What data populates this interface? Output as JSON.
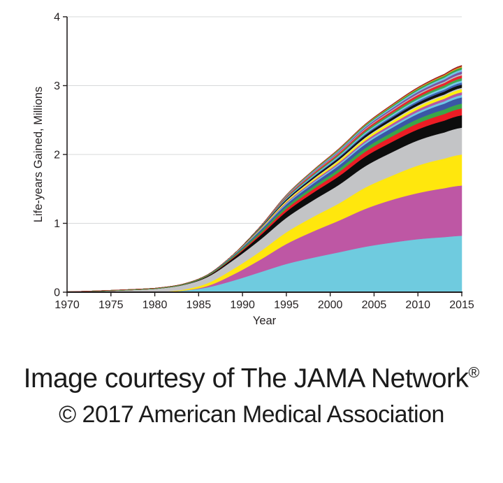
{
  "page": {
    "background": "#FFFFFF"
  },
  "chart_data": {
    "type": "area",
    "stacked": true,
    "title": "",
    "xlabel": "Year",
    "ylabel": "Life-years Gained, Millions",
    "xlim": [
      1970,
      2015
    ],
    "ylim": [
      0,
      4
    ],
    "x_ticks": [
      "1970",
      "1975",
      "1980",
      "1985",
      "1990",
      "1995",
      "2000",
      "2005",
      "2010",
      "2015"
    ],
    "y_ticks": [
      "0",
      "1",
      "2",
      "3",
      "4"
    ],
    "grid": {
      "horizontal": true,
      "values": [
        1,
        2,
        3,
        4
      ],
      "color": "#D7D8DA"
    },
    "axis_color": "#231F20",
    "tick_label_color": "#231F20",
    "years": [
      1970,
      1975,
      1980,
      1983,
      1986,
      1989,
      1992,
      1995,
      1998,
      2001,
      2004,
      2007,
      2010,
      2013,
      2015
    ],
    "series": [
      {
        "name": "band-01-cyan",
        "color": "#6FCBDF",
        "values": [
          0,
          0,
          0.002,
          0.02,
          0.07,
          0.17,
          0.29,
          0.41,
          0.5,
          0.58,
          0.66,
          0.72,
          0.77,
          0.8,
          0.82
        ]
      },
      {
        "name": "band-02-magenta",
        "color": "#BE57A4",
        "values": [
          0,
          0,
          0,
          0,
          0.02,
          0.09,
          0.18,
          0.29,
          0.38,
          0.46,
          0.55,
          0.62,
          0.67,
          0.71,
          0.73
        ]
      },
      {
        "name": "band-03-yellow",
        "color": "#FFE70D",
        "values": [
          0,
          0,
          0.001,
          0.012,
          0.04,
          0.08,
          0.12,
          0.17,
          0.21,
          0.25,
          0.31,
          0.35,
          0.4,
          0.43,
          0.45
        ]
      },
      {
        "name": "band-04-gray",
        "color": "#C3C4C6",
        "values": [
          0.004,
          0.02,
          0.045,
          0.065,
          0.09,
          0.13,
          0.17,
          0.21,
          0.24,
          0.27,
          0.31,
          0.34,
          0.365,
          0.38,
          0.39
        ]
      },
      {
        "name": "band-05-black",
        "color": "#0D0D0D",
        "values": [
          0,
          0,
          0,
          0.003,
          0.012,
          0.03,
          0.06,
          0.09,
          0.11,
          0.125,
          0.14,
          0.15,
          0.16,
          0.172,
          0.18
        ]
      },
      {
        "name": "band-06-red",
        "color": "#EC1C24",
        "values": [
          0,
          0,
          0,
          0,
          0.004,
          0.012,
          0.025,
          0.04,
          0.05,
          0.06,
          0.07,
          0.08,
          0.088,
          0.095,
          0.1
        ]
      },
      {
        "name": "band-07-green",
        "color": "#3AA648",
        "values": [
          0.004,
          0.008,
          0.01,
          0.012,
          0.014,
          0.018,
          0.026,
          0.034,
          0.04,
          0.046,
          0.052,
          0.058,
          0.063,
          0.067,
          0.07
        ]
      },
      {
        "name": "band-08-blue",
        "color": "#3A56A6",
        "values": [
          0,
          0,
          0,
          0,
          0.004,
          0.012,
          0.022,
          0.032,
          0.042,
          0.05,
          0.058,
          0.066,
          0.075,
          0.084,
          0.09
        ]
      },
      {
        "name": "band-09-skyblue",
        "color": "#6EC6E6",
        "values": [
          0,
          0,
          0,
          0,
          0,
          0.003,
          0.008,
          0.013,
          0.017,
          0.021,
          0.024,
          0.027,
          0.03,
          0.033,
          0.035
        ]
      },
      {
        "name": "band-10-orchid",
        "color": "#B458A5",
        "values": [
          0,
          0,
          0,
          0,
          0,
          0.003,
          0.009,
          0.015,
          0.02,
          0.024,
          0.028,
          0.032,
          0.035,
          0.038,
          0.04
        ]
      },
      {
        "name": "band-11-yellow",
        "color": "#FFF20D",
        "values": [
          0,
          0,
          0,
          0,
          0,
          0.004,
          0.01,
          0.017,
          0.022,
          0.027,
          0.032,
          0.036,
          0.04,
          0.043,
          0.045
        ]
      },
      {
        "name": "band-12-gray",
        "color": "#C6C7C9",
        "values": [
          0,
          0,
          0,
          0,
          0,
          0.001,
          0.004,
          0.007,
          0.009,
          0.011,
          0.013,
          0.015,
          0.017,
          0.019,
          0.02
        ]
      },
      {
        "name": "band-13-black",
        "color": "#111111",
        "values": [
          0,
          0,
          0,
          0,
          0,
          0.003,
          0.01,
          0.017,
          0.022,
          0.027,
          0.032,
          0.036,
          0.04,
          0.043,
          0.045
        ]
      },
      {
        "name": "band-14-blue",
        "color": "#3F5EB0",
        "values": [
          0,
          0,
          0,
          0,
          0,
          0,
          0.004,
          0.009,
          0.013,
          0.016,
          0.019,
          0.022,
          0.025,
          0.028,
          0.03
        ]
      },
      {
        "name": "band-15-skyblue",
        "color": "#74C9E8",
        "values": [
          0,
          0,
          0,
          0,
          0,
          0,
          0.004,
          0.009,
          0.013,
          0.016,
          0.019,
          0.022,
          0.025,
          0.028,
          0.03
        ]
      },
      {
        "name": "band-16-green",
        "color": "#42A94E",
        "values": [
          0,
          0,
          0,
          0,
          0,
          0,
          0.005,
          0.011,
          0.015,
          0.019,
          0.023,
          0.026,
          0.029,
          0.032,
          0.035
        ]
      },
      {
        "name": "band-17-red",
        "color": "#E8262C",
        "values": [
          0,
          0,
          0,
          0,
          0,
          0,
          0.006,
          0.013,
          0.018,
          0.022,
          0.026,
          0.03,
          0.034,
          0.037,
          0.04
        ]
      },
      {
        "name": "band-18-gray",
        "color": "#BDBEC0",
        "values": [
          0,
          0,
          0,
          0,
          0,
          0,
          0,
          0.004,
          0.007,
          0.009,
          0.011,
          0.013,
          0.016,
          0.018,
          0.02
        ]
      },
      {
        "name": "band-19-purple",
        "color": "#7C53A3",
        "values": [
          0,
          0,
          0,
          0,
          0,
          0,
          0,
          0.007,
          0.011,
          0.015,
          0.019,
          0.023,
          0.027,
          0.031,
          0.035
        ]
      },
      {
        "name": "band-20-skyblue",
        "color": "#6EC6E6",
        "values": [
          0,
          0,
          0,
          0,
          0,
          0,
          0,
          0.006,
          0.01,
          0.013,
          0.016,
          0.019,
          0.023,
          0.027,
          0.03
        ]
      },
      {
        "name": "band-21-green",
        "color": "#39A348",
        "values": [
          0,
          0,
          0,
          0,
          0,
          0,
          0,
          0.006,
          0.01,
          0.013,
          0.016,
          0.019,
          0.023,
          0.027,
          0.03
        ]
      },
      {
        "name": "band-22-orange",
        "color": "#F6921E",
        "values": [
          0,
          0,
          0,
          0,
          0,
          0,
          0,
          0.003,
          0.005,
          0.007,
          0.008,
          0.01,
          0.011,
          0.013,
          0.015
        ]
      },
      {
        "name": "band-23-maroon",
        "color": "#992023",
        "values": [
          0,
          0,
          0,
          0,
          0,
          0,
          0,
          0.003,
          0.005,
          0.007,
          0.008,
          0.01,
          0.011,
          0.013,
          0.015
        ]
      }
    ]
  },
  "caption": {
    "line1": "Image courtesy of The JAMA Network",
    "registered": "®",
    "line2": "© 2017 American Medical Association"
  }
}
